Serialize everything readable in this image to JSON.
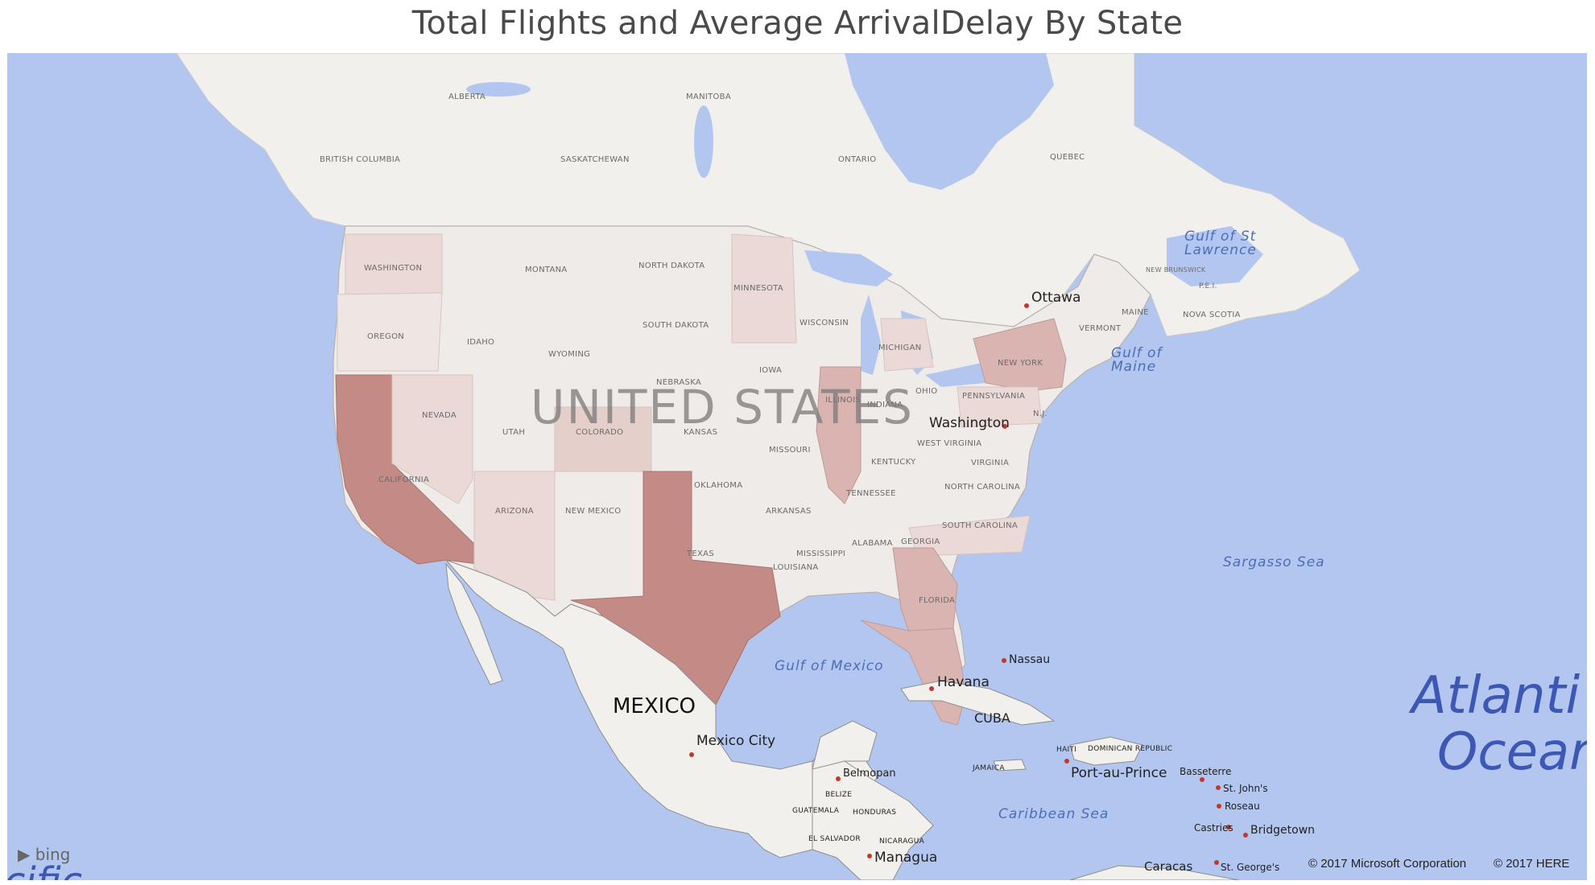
{
  "title": "Total Flights and Average ArrivalDelay By State",
  "colors": {
    "water": "#b3c6ef",
    "land": "#f1f0ec",
    "heat_strong": "#c48a86",
    "heat_mid": "#d9b4b0",
    "heat_light": "#ead9d6",
    "heat_faint": "#efe6e4"
  },
  "provinces": [
    "BRITISH COLUMBIA",
    "ALBERTA",
    "SASKATCHEWAN",
    "MANITOBA",
    "ONTARIO",
    "QUEBEC",
    "NEW BRUNSWICK",
    "P.E.I.",
    "NOVA SCOTIA"
  ],
  "states": [
    "WASHINGTON",
    "MONTANA",
    "NORTH DAKOTA",
    "MINNESOTA",
    "OREGON",
    "IDAHO",
    "SOUTH DAKOTA",
    "WYOMING",
    "WISCONSIN",
    "MICHIGAN",
    "IOWA",
    "NEBRASKA",
    "NEVADA",
    "UTAH",
    "COLORADO",
    "KANSAS",
    "MISSOURI",
    "ILLINOIS",
    "INDIANA",
    "OHIO",
    "PENNSYLVANIA",
    "NEW YORK",
    "VERMONT",
    "MAINE",
    "N.J.",
    "WEST VIRGINIA",
    "VIRGINIA",
    "KENTUCKY",
    "CALIFORNIA",
    "ARIZONA",
    "NEW MEXICO",
    "OKLAHOMA",
    "ARKANSAS",
    "TENNESSEE",
    "NORTH CAROLINA",
    "SOUTH CAROLINA",
    "TEXAS",
    "MISSISSIPPI",
    "ALABAMA",
    "GEORGIA",
    "LOUISIANA",
    "FLORIDA"
  ],
  "countries": {
    "us": "UNITED STATES",
    "mexico": "MEXICO",
    "cuba": "CUBA",
    "haiti": "HAITI",
    "dominican": "DOMINICAN REPUBLIC",
    "jamaica": "JAMAICA",
    "belize": "BELIZE",
    "guatemala": "GUATEMALA",
    "honduras": "HONDURAS",
    "el_salvador": "EL SALVADOR",
    "nicaragua": "NICARAGUA"
  },
  "cities": [
    "Ottawa",
    "Washington",
    "Nassau",
    "Havana",
    "Mexico City",
    "Belmopan",
    "Port-au-Prince",
    "Basseterre",
    "St. John's",
    "Roseau",
    "Castries",
    "Bridgetown",
    "Managua",
    "Caracas",
    "St. George's"
  ],
  "water": {
    "gulf_st_lawrence_1": "Gulf of St",
    "gulf_st_lawrence_2": "Lawrence",
    "gulf_maine_1": "Gulf of",
    "gulf_maine_2": "Maine",
    "sargasso": "Sargasso Sea",
    "gulf_mexico": "Gulf of Mexico",
    "caribbean": "Caribbean Sea",
    "atlantic_1": "Atlanti",
    "atlantic_2": "Ocear",
    "pacific": "cific"
  },
  "shading": {
    "strong": [
      "CALIFORNIA",
      "TEXAS"
    ],
    "mid": [
      "ILLINOIS",
      "GEORGIA",
      "FLORIDA",
      "NEW YORK"
    ],
    "light": [
      "ARIZONA",
      "NEVADA",
      "COLORADO",
      "MINNESOTA",
      "WASHINGTON",
      "PENNSYLVANIA",
      "NORTH CAROLINA",
      "MICHIGAN"
    ]
  },
  "attribution": {
    "bing": "bing",
    "microsoft": "© 2017 Microsoft Corporation",
    "here": "© 2017 HERE"
  }
}
